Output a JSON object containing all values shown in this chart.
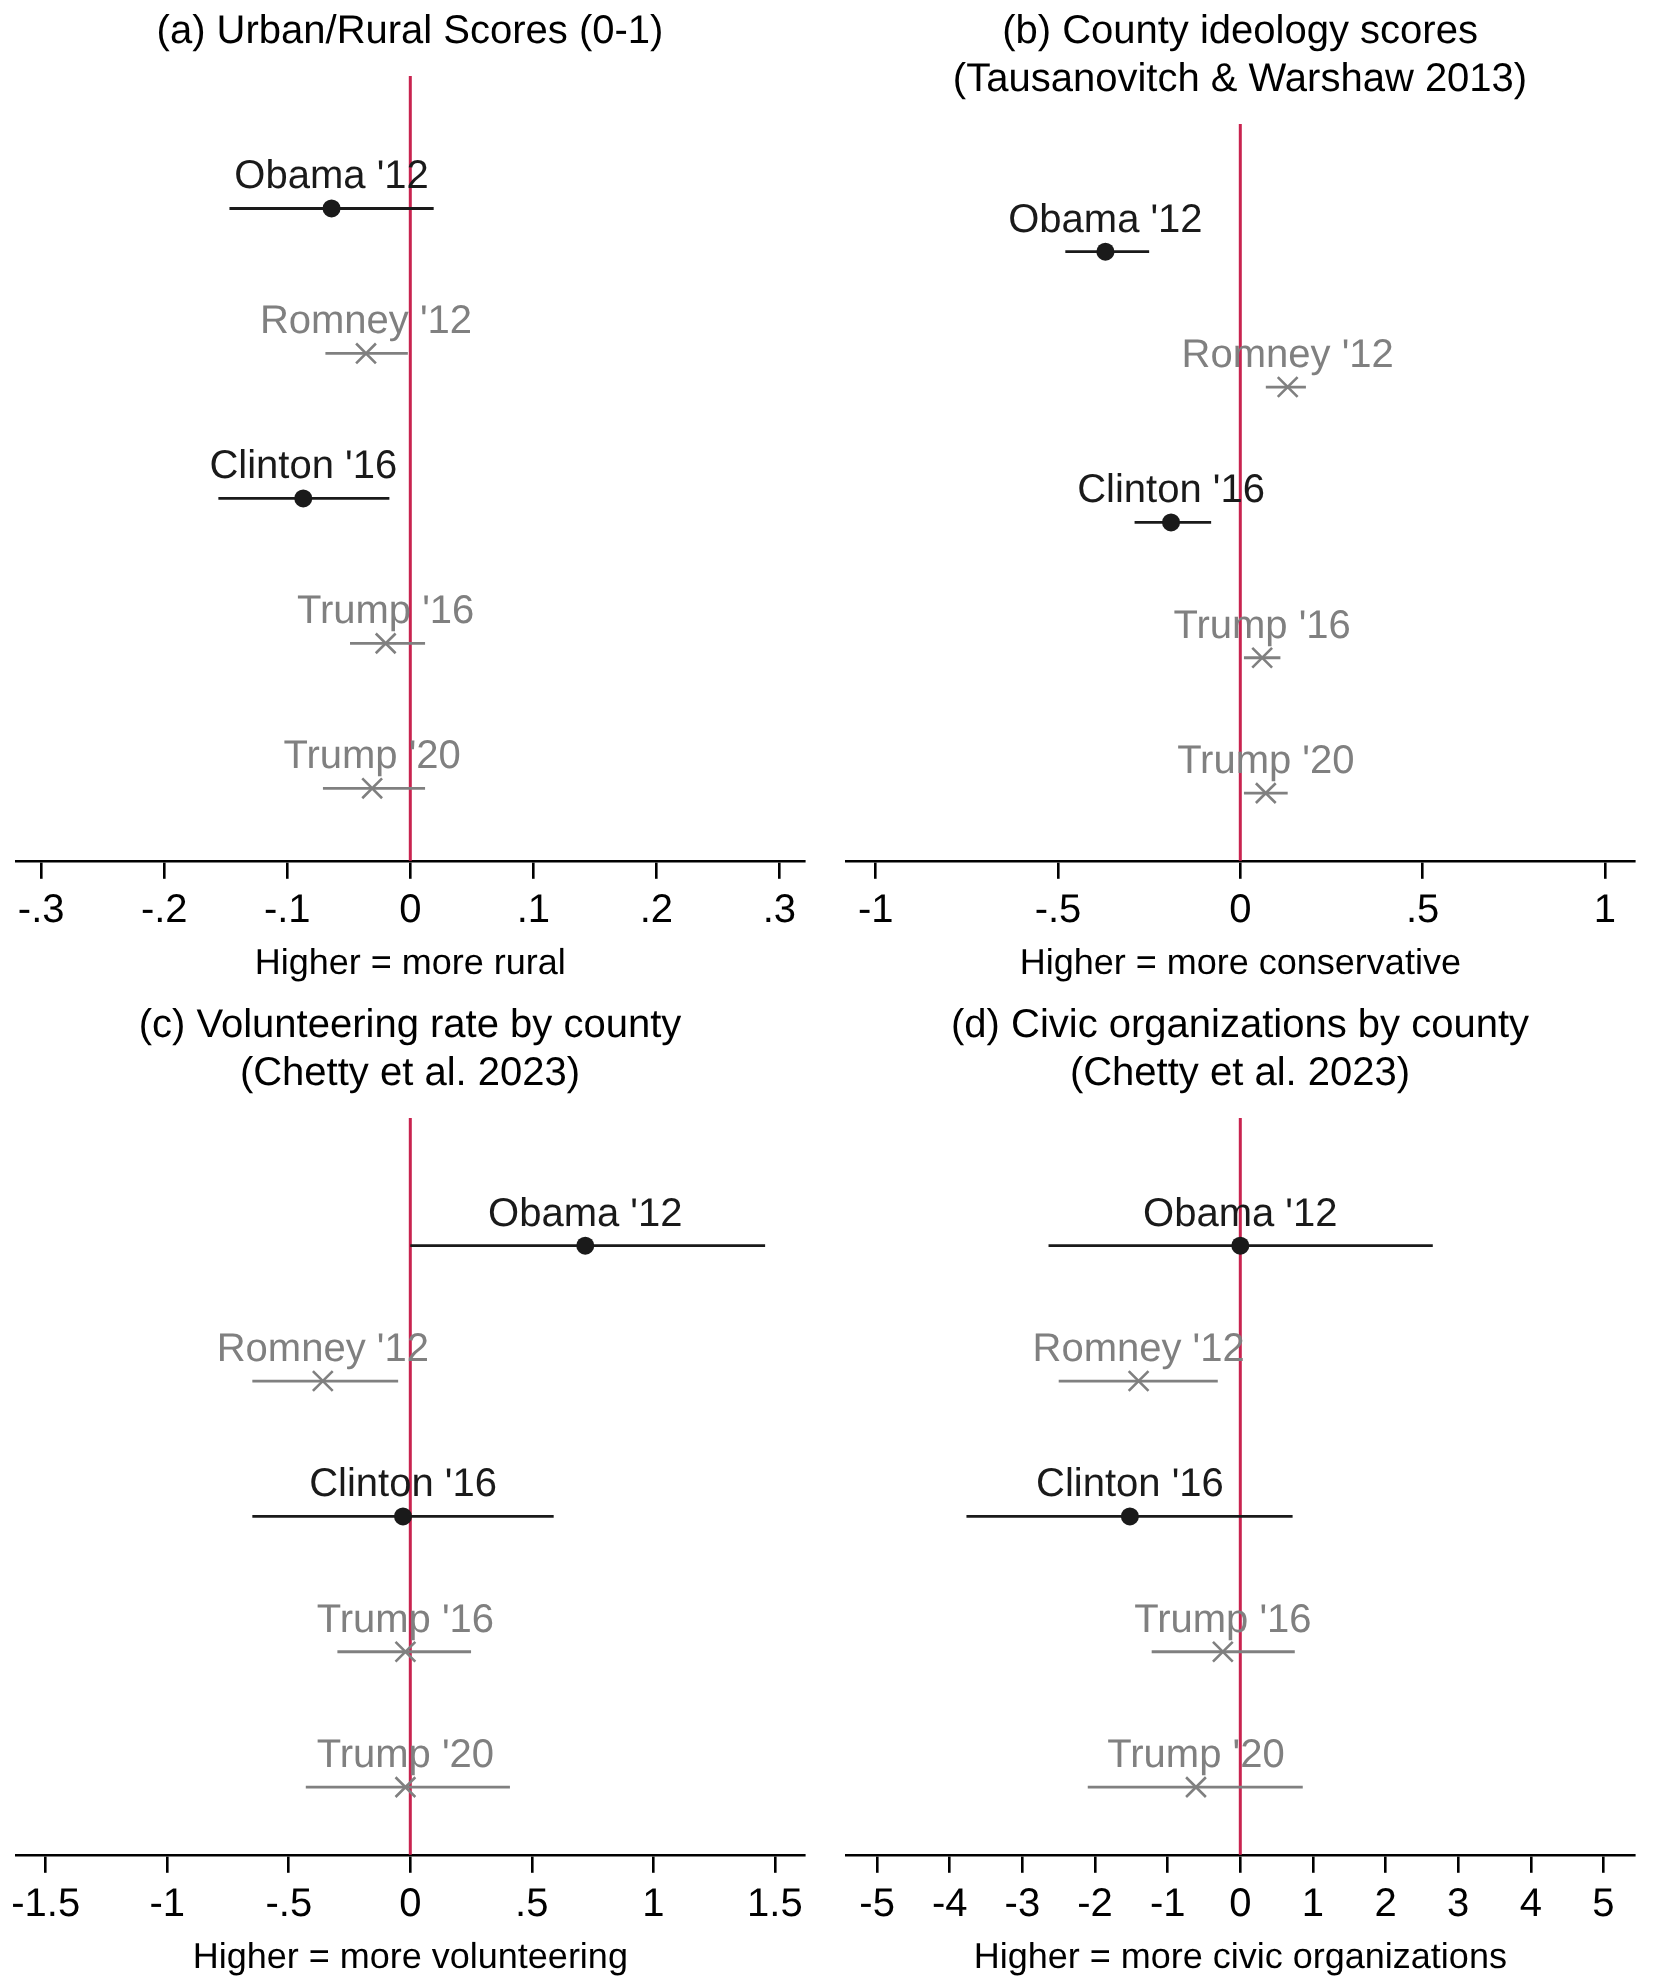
{
  "chart_data": [
    {
      "type": "scatter",
      "title": "(a) Urban/Rural Scores (0-1)",
      "xlabel": "Higher = more rural",
      "orientation": "horizontal",
      "categories": [
        "Obama '12",
        "Romney '12",
        "Clinton '16",
        "Trump '16",
        "Trump '20"
      ],
      "series": [
        {
          "color": "#1a1a1a",
          "marker": "circle",
          "values": [
            -0.064,
            null,
            -0.087,
            null,
            null
          ],
          "errors": [
            [
              -0.147,
              0.019
            ],
            null,
            [
              -0.156,
              -0.017
            ],
            null,
            null
          ]
        },
        {
          "color": "#808080",
          "marker": "cross",
          "values": [
            null,
            -0.036,
            null,
            -0.02,
            -0.031
          ],
          "errors": [
            null,
            [
              -0.069,
              -0.002
            ],
            null,
            [
              -0.049,
              0.012
            ],
            [
              -0.071,
              0.012
            ]
          ]
        }
      ],
      "xlim": [
        -0.32,
        0.32
      ],
      "xticks": [
        {
          "value": -0.3,
          "label": "-.3"
        },
        {
          "value": -0.2,
          "label": "-.2"
        },
        {
          "value": -0.1,
          "label": "-.1"
        },
        0,
        {
          "value": 0.1,
          "label": ".1"
        },
        {
          "value": 0.2,
          "label": ".2"
        },
        {
          "value": 0.3,
          "label": ".3"
        }
      ],
      "ref_lines": [
        {
          "axis": "x",
          "value": 0,
          "color": "#c8234f"
        }
      ],
      "tick_labels": "x",
      "grid": false,
      "legend": false
    },
    {
      "type": "scatter",
      "title": "(b) County ideology scores\n(Tausanovitch & Warshaw 2013)",
      "xlabel": "Higher = more conservative",
      "orientation": "horizontal",
      "categories": [
        "Obama '12",
        "Romney '12",
        "Clinton '16",
        "Trump '16",
        "Trump '20"
      ],
      "series": [
        {
          "color": "#1a1a1a",
          "marker": "circle",
          "values": [
            -0.37,
            null,
            -0.19,
            null,
            null
          ],
          "errors": [
            [
              -0.48,
              -0.25
            ],
            null,
            [
              -0.29,
              -0.08
            ],
            null,
            null
          ]
        },
        {
          "color": "#808080",
          "marker": "cross",
          "values": [
            null,
            0.13,
            null,
            0.06,
            0.07
          ],
          "errors": [
            null,
            [
              0.07,
              0.18
            ],
            null,
            [
              0.01,
              0.11
            ],
            [
              0.01,
              0.13
            ]
          ]
        }
      ],
      "xlim": [
        -1.08,
        1.08
      ],
      "xticks": [
        -1,
        {
          "value": -0.5,
          "label": "-.5"
        },
        0,
        {
          "value": 0.5,
          "label": ".5"
        },
        1
      ],
      "ref_lines": [
        {
          "axis": "x",
          "value": 0,
          "color": "#c8234f"
        }
      ],
      "tick_labels": "x",
      "grid": false,
      "legend": false
    },
    {
      "type": "scatter",
      "title": "(c) Volunteering rate by county\n(Chetty et al. 2023)",
      "xlabel": "Higher = more volunteering",
      "orientation": "horizontal",
      "categories": [
        "Obama '12",
        "Romney '12",
        "Clinton '16",
        "Trump '16",
        "Trump '20"
      ],
      "series": [
        {
          "color": "#1a1a1a",
          "marker": "circle",
          "values": [
            0.72,
            null,
            -0.03,
            null,
            null
          ],
          "errors": [
            [
              0.0,
              1.46
            ],
            null,
            [
              -0.65,
              0.59
            ],
            null,
            null
          ]
        },
        {
          "color": "#808080",
          "marker": "cross",
          "values": [
            null,
            -0.36,
            null,
            -0.02,
            -0.02
          ],
          "errors": [
            null,
            [
              -0.65,
              -0.05
            ],
            null,
            [
              -0.3,
              0.25
            ],
            [
              -0.43,
              0.41
            ]
          ]
        }
      ],
      "xlim": [
        -1.62,
        1.62
      ],
      "xticks": [
        -1.5,
        -1,
        {
          "value": -0.5,
          "label": "-.5"
        },
        0,
        {
          "value": 0.5,
          "label": ".5"
        },
        1,
        1.5
      ],
      "ref_lines": [
        {
          "axis": "x",
          "value": 0,
          "color": "#c8234f"
        }
      ],
      "tick_labels": "x",
      "grid": false,
      "legend": false
    },
    {
      "type": "scatter",
      "title": "(d) Civic organizations by county\n(Chetty et al. 2023)",
      "xlabel": "Higher = more civic organizations",
      "orientation": "horizontal",
      "categories": [
        "Obama '12",
        "Romney '12",
        "Clinton '16",
        "Trump '16",
        "Trump '20"
      ],
      "series": [
        {
          "color": "#1a1a1a",
          "marker": "circle",
          "values": [
            0.0,
            null,
            -1.52,
            null,
            null
          ],
          "errors": [
            [
              -2.64,
              2.65
            ],
            null,
            [
              -3.77,
              0.72
            ],
            null,
            null
          ]
        },
        {
          "color": "#808080",
          "marker": "cross",
          "values": [
            null,
            -1.4,
            null,
            -0.24,
            -0.61
          ],
          "errors": [
            null,
            [
              -2.5,
              -0.31
            ],
            null,
            [
              -1.22,
              0.75
            ],
            [
              -2.1,
              0.86
            ]
          ]
        }
      ],
      "xlim": [
        -5.42,
        5.42
      ],
      "xticks": [
        -5,
        -4,
        -3,
        -2,
        -1,
        0,
        1,
        2,
        3,
        4,
        5
      ],
      "ref_lines": [
        {
          "axis": "x",
          "value": 0,
          "color": "#c8234f"
        }
      ],
      "tick_labels": "x",
      "grid": false,
      "legend": false
    }
  ]
}
